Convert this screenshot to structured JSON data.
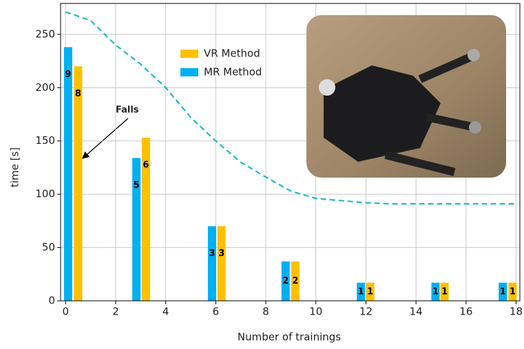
{
  "chart_data": {
    "type": "bar",
    "x_label": "Number of trainings",
    "y_label": "time [s]",
    "xlim": [
      -0.2,
      18.15
    ],
    "ylim": [
      0,
      279
    ],
    "xticks": [
      0,
      2,
      4,
      6,
      8,
      10,
      12,
      14,
      16,
      18
    ],
    "yticks": [
      0,
      50,
      100,
      150,
      200,
      250
    ],
    "grid": true,
    "series": [
      {
        "name": "VR Method",
        "color": "#ffc000",
        "x": [
          0.5,
          3.21,
          6.23,
          9.18,
          12.17,
          15.14,
          17.86
        ],
        "values": [
          220,
          153,
          70,
          37,
          17,
          17,
          17
        ],
        "falls": [
          8,
          6,
          3,
          2,
          1,
          1,
          1
        ]
      },
      {
        "name": "MR Method",
        "color": "#00b0f0",
        "x": [
          0.1,
          2.83,
          5.85,
          8.79,
          11.8,
          14.78,
          17.47
        ],
        "values": [
          238,
          134,
          70,
          37,
          17,
          17,
          17
        ],
        "falls": [
          9,
          5,
          3,
          2,
          1,
          1,
          1
        ]
      }
    ],
    "curve": {
      "color": "#1fbcc4",
      "x": [
        0,
        1,
        2,
        3,
        4,
        5,
        6,
        7,
        8,
        9,
        10,
        11,
        12,
        13,
        14,
        15,
        16,
        17,
        18
      ],
      "y": [
        271,
        263,
        240,
        222,
        200,
        172,
        150,
        130,
        116,
        103,
        96,
        94,
        92,
        91,
        91,
        91,
        91,
        91,
        91
      ]
    },
    "annotation": "Falls"
  }
}
